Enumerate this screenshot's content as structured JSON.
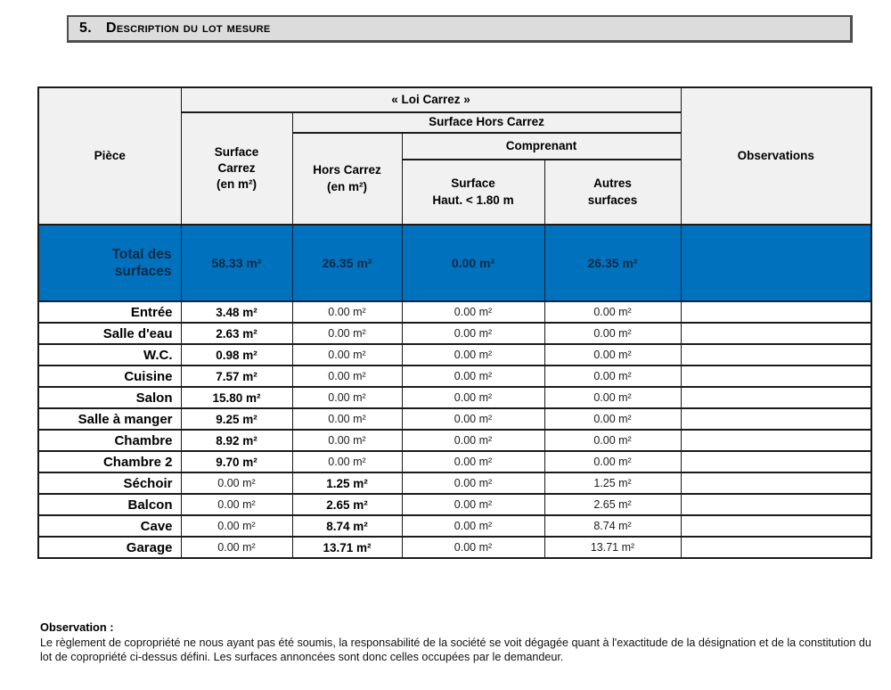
{
  "title": {
    "number": "5.",
    "text": "Description du lot mesure"
  },
  "table": {
    "headers": {
      "piece": "Pièce",
      "loi_carrez": "« Loi Carrez »",
      "surface_carrez": "Surface\nCarrez\n(en m²)",
      "surface_hors_carrez": "Surface Hors Carrez",
      "hors_carrez": "Hors Carrez\n(en m²)",
      "comprenant": "Comprenant",
      "surface_haut": "Surface\nHaut. < 1.80 m",
      "autres_surfaces": "Autres\nsurfaces",
      "observations": "Observations"
    },
    "total_row": {
      "label": "Total des\nsurfaces",
      "carrez": "58.33 m²",
      "hors": "26.35 m²",
      "haut": "0.00 m²",
      "autres": "26.35 m²",
      "observation": ""
    },
    "rows": [
      {
        "name": "Entrée",
        "carrez": "3.48 m²",
        "hors": "0.00 m²",
        "haut": "0.00 m²",
        "autres": "0.00 m²",
        "bold": "carrez",
        "observation": ""
      },
      {
        "name": "Salle d'eau",
        "carrez": "2.63 m²",
        "hors": "0.00 m²",
        "haut": "0.00 m²",
        "autres": "0.00 m²",
        "bold": "carrez",
        "observation": ""
      },
      {
        "name": "W.C.",
        "carrez": "0.98 m²",
        "hors": "0.00 m²",
        "haut": "0.00 m²",
        "autres": "0.00 m²",
        "bold": "carrez",
        "observation": ""
      },
      {
        "name": "Cuisine",
        "carrez": "7.57 m²",
        "hors": "0.00 m²",
        "haut": "0.00 m²",
        "autres": "0.00 m²",
        "bold": "carrez",
        "observation": ""
      },
      {
        "name": "Salon",
        "carrez": "15.80 m²",
        "hors": "0.00 m²",
        "haut": "0.00 m²",
        "autres": "0.00 m²",
        "bold": "carrez",
        "observation": ""
      },
      {
        "name": "Salle à manger",
        "carrez": "9.25 m²",
        "hors": "0.00 m²",
        "haut": "0.00 m²",
        "autres": "0.00 m²",
        "bold": "carrez",
        "observation": ""
      },
      {
        "name": "Chambre",
        "carrez": "8.92 m²",
        "hors": "0.00 m²",
        "haut": "0.00 m²",
        "autres": "0.00 m²",
        "bold": "carrez",
        "observation": ""
      },
      {
        "name": "Chambre 2",
        "carrez": "9.70 m²",
        "hors": "0.00 m²",
        "haut": "0.00 m²",
        "autres": "0.00 m²",
        "bold": "carrez",
        "observation": ""
      },
      {
        "name": "Séchoir",
        "carrez": "0.00 m²",
        "hors": "1.25 m²",
        "haut": "0.00 m²",
        "autres": "1.25 m²",
        "bold": "hors",
        "observation": ""
      },
      {
        "name": "Balcon",
        "carrez": "0.00 m²",
        "hors": "2.65 m²",
        "haut": "0.00 m²",
        "autres": "2.65 m²",
        "bold": "hors",
        "observation": ""
      },
      {
        "name": "Cave",
        "carrez": "0.00 m²",
        "hors": "8.74 m²",
        "haut": "0.00 m²",
        "autres": "8.74 m²",
        "bold": "hors",
        "observation": ""
      },
      {
        "name": "Garage",
        "carrez": "0.00 m²",
        "hors": "13.71 m²",
        "haut": "0.00 m²",
        "autres": "13.71 m²",
        "bold": "hors",
        "observation": ""
      }
    ]
  },
  "observation": {
    "label": "Observation :",
    "text": "Le règlement de copropriété ne nous ayant pas été soumis, la responsabilité de la société se voit dégagée quant à l'exactitude de la désignation et de la constitution du lot de copropriété ci-dessus défini. Les surfaces annoncées sont donc celles occupées par le demandeur."
  },
  "colors": {
    "accent_blue": "#0071bc",
    "header_gray": "#f1f1f1",
    "title_gray": "#dcdcdc",
    "total_text": "#0e2a47"
  }
}
